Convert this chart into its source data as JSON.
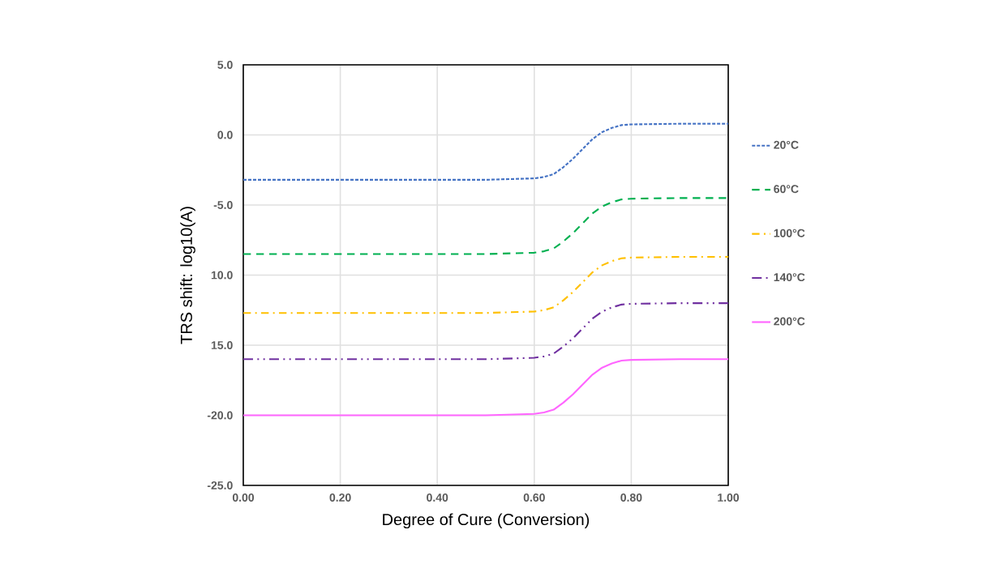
{
  "chart_data": {
    "type": "line",
    "xlabel": "Degree of Cure (Conversion)",
    "ylabel": "TRS shift: log10(A)",
    "x": [
      0,
      0.1,
      0.2,
      0.3,
      0.4,
      0.5,
      0.6,
      0.62,
      0.64,
      0.66,
      0.68,
      0.7,
      0.72,
      0.74,
      0.76,
      0.78,
      0.8,
      0.9,
      1.0
    ],
    "series": [
      {
        "name": "20°C",
        "color": "#4472c4",
        "line_style": "dotted",
        "values": [
          -3.2,
          -3.2,
          -3.2,
          -3.2,
          -3.2,
          -3.2,
          -3.1,
          -3.0,
          -2.8,
          -2.3,
          -1.7,
          -1.0,
          -0.3,
          0.2,
          0.5,
          0.7,
          0.75,
          0.8,
          0.8
        ]
      },
      {
        "name": "60°C",
        "color": "#00b050",
        "line_style": "dashed",
        "values": [
          -8.5,
          -8.5,
          -8.5,
          -8.5,
          -8.5,
          -8.5,
          -8.4,
          -8.3,
          -8.1,
          -7.6,
          -7.0,
          -6.3,
          -5.6,
          -5.1,
          -4.8,
          -4.6,
          -4.55,
          -4.5,
          -4.5
        ]
      },
      {
        "name": "100°C",
        "color": "#ffc000",
        "line_style": "dashdot",
        "values": [
          -12.7,
          -12.7,
          -12.7,
          -12.7,
          -12.7,
          -12.7,
          -12.6,
          -12.5,
          -12.3,
          -11.8,
          -11.2,
          -10.5,
          -9.8,
          -9.3,
          -9.0,
          -8.8,
          -8.75,
          -8.7,
          -8.7
        ]
      },
      {
        "name": "140°C",
        "color": "#7030a0",
        "line_style": "dashdotdot",
        "values": [
          -16.0,
          -16.0,
          -16.0,
          -16.0,
          -16.0,
          -16.0,
          -15.9,
          -15.8,
          -15.6,
          -15.1,
          -14.5,
          -13.8,
          -13.1,
          -12.6,
          -12.3,
          -12.1,
          -12.05,
          -12.0,
          -12.0
        ]
      },
      {
        "name": "200°C",
        "color": "#ff66ff",
        "line_style": "solid",
        "values": [
          -20.0,
          -20.0,
          -20.0,
          -20.0,
          -20.0,
          -20.0,
          -19.9,
          -19.8,
          -19.6,
          -19.1,
          -18.5,
          -17.8,
          -17.1,
          -16.6,
          -16.3,
          -16.1,
          -16.05,
          -16.0,
          -16.0
        ]
      }
    ],
    "xlim": [
      0,
      1
    ],
    "ylim": [
      -25,
      5
    ],
    "xticks": [
      {
        "value": 0,
        "label": "0.00"
      },
      {
        "value": 0.2,
        "label": "0.20"
      },
      {
        "value": 0.4,
        "label": "0.40"
      },
      {
        "value": 0.6,
        "label": "0.60"
      },
      {
        "value": 0.8,
        "label": "0.80"
      },
      {
        "value": 1.0,
        "label": "1.00"
      }
    ],
    "yticks": [
      {
        "value": 5,
        "label": "5.0"
      },
      {
        "value": 0,
        "label": "0.0"
      },
      {
        "value": -5,
        "label": "-5.0"
      },
      {
        "value": -10,
        "label": "10.0"
      },
      {
        "value": -15,
        "label": "15.0"
      },
      {
        "value": -20,
        "label": "-20.0"
      },
      {
        "value": -25,
        "label": "-25.0"
      }
    ],
    "grid": true,
    "legend": "right",
    "marker": "none"
  }
}
